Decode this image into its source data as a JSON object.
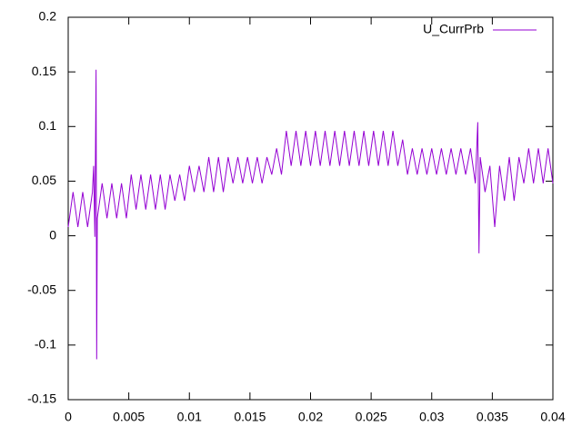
{
  "chart_data": {
    "type": "line",
    "x": [
      0,
      0.0004,
      0.0008,
      0.0012,
      0.0016,
      0.002,
      0.0021,
      0.0022,
      0.0023,
      0.00235,
      0.0024,
      0.0028,
      0.0032,
      0.0036,
      0.004,
      0.0044,
      0.0048,
      0.0052,
      0.0056,
      0.006,
      0.0064,
      0.0068,
      0.0072,
      0.0076,
      0.008,
      0.0084,
      0.0088,
      0.0092,
      0.0096,
      0.01,
      0.0104,
      0.0108,
      0.0112,
      0.0116,
      0.012,
      0.0124,
      0.0128,
      0.0132,
      0.0136,
      0.014,
      0.0144,
      0.0148,
      0.0152,
      0.0156,
      0.016,
      0.0164,
      0.0168,
      0.0172,
      0.0176,
      0.018,
      0.0184,
      0.0188,
      0.0192,
      0.0196,
      0.02,
      0.0204,
      0.0208,
      0.0212,
      0.0216,
      0.022,
      0.0224,
      0.0228,
      0.0232,
      0.0236,
      0.024,
      0.0244,
      0.0248,
      0.0252,
      0.0256,
      0.026,
      0.0264,
      0.0268,
      0.0272,
      0.0276,
      0.028,
      0.0284,
      0.0288,
      0.0292,
      0.0296,
      0.03,
      0.0304,
      0.0308,
      0.0312,
      0.0316,
      0.032,
      0.0324,
      0.0328,
      0.0332,
      0.0336,
      0.0338,
      0.0339,
      0.034,
      0.0344,
      0.0348,
      0.0352,
      0.0356,
      0.036,
      0.0364,
      0.0368,
      0.0372,
      0.0376,
      0.038,
      0.0384,
      0.0388,
      0.0392,
      0.0396,
      0.04
    ],
    "series": [
      {
        "name": "U_CurrPrb",
        "color": "#9400d3",
        "values": [
          0.008,
          0.04,
          0.008,
          0.04,
          0.008,
          0.04,
          0.064,
          -0.001,
          0.152,
          -0.113,
          0.016,
          0.048,
          0.016,
          0.048,
          0.016,
          0.048,
          0.016,
          0.056,
          0.024,
          0.056,
          0.024,
          0.056,
          0.024,
          0.056,
          0.024,
          0.056,
          0.032,
          0.056,
          0.032,
          0.064,
          0.04,
          0.064,
          0.04,
          0.072,
          0.04,
          0.072,
          0.04,
          0.072,
          0.048,
          0.072,
          0.048,
          0.072,
          0.048,
          0.072,
          0.048,
          0.072,
          0.056,
          0.08,
          0.056,
          0.096,
          0.064,
          0.096,
          0.064,
          0.096,
          0.064,
          0.096,
          0.064,
          0.096,
          0.064,
          0.096,
          0.064,
          0.096,
          0.064,
          0.096,
          0.064,
          0.096,
          0.064,
          0.096,
          0.064,
          0.096,
          0.064,
          0.096,
          0.064,
          0.088,
          0.056,
          0.08,
          0.056,
          0.08,
          0.056,
          0.08,
          0.056,
          0.08,
          0.056,
          0.08,
          0.056,
          0.08,
          0.056,
          0.08,
          0.048,
          0.104,
          -0.016,
          0.072,
          0.04,
          0.064,
          0.008,
          0.064,
          0.032,
          0.072,
          0.032,
          0.072,
          0.048,
          0.08,
          0.048,
          0.08,
          0.048,
          0.08,
          0.048
        ]
      }
    ],
    "xlim": [
      0,
      0.04
    ],
    "xticks": [
      0,
      0.005,
      0.01,
      0.015,
      0.02,
      0.025,
      0.03,
      0.035,
      0.04
    ],
    "ylim": [
      -0.15,
      0.2
    ],
    "yticks": [
      -0.15,
      -0.1,
      -0.05,
      0,
      0.05,
      0.1,
      0.15,
      0.2
    ],
    "legend": "top right"
  }
}
